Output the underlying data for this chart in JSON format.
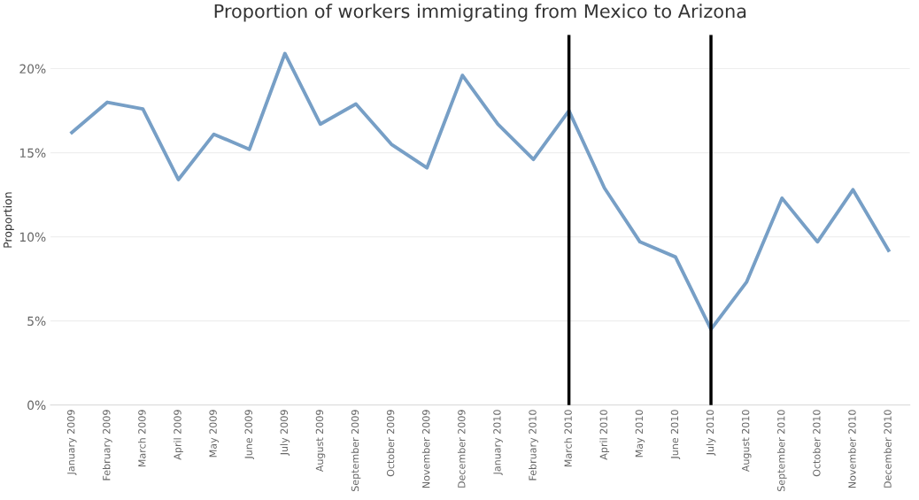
{
  "chart_data": {
    "type": "line",
    "title": "Proportion of workers immigrating from Mexico to Arizona",
    "ylabel": "Proportion",
    "categories": [
      "January 2009",
      "February 2009",
      "March 2009",
      "April 2009",
      "May 2009",
      "June 2009",
      "July 2009",
      "August 2009",
      "September 2009",
      "October 2009",
      "November 2009",
      "December 2009",
      "January 2010",
      "February 2010",
      "March 2010",
      "April 2010",
      "May 2010",
      "June 2010",
      "July 2010",
      "August 2010",
      "September 2010",
      "October 2010",
      "November 2010",
      "December 2010"
    ],
    "series": [
      {
        "color": "#779fc6",
        "values": [
          16.2,
          18.0,
          17.6,
          13.4,
          16.1,
          15.2,
          20.9,
          16.7,
          17.9,
          15.5,
          14.1,
          19.6,
          16.7,
          14.6,
          17.5,
          12.9,
          9.7,
          8.8,
          4.5,
          7.3,
          12.3,
          9.7,
          12.8,
          9.2
        ]
      }
    ],
    "ylim": [
      0,
      22
    ],
    "yticks": [
      {
        "value": 0,
        "label": "0%"
      },
      {
        "value": 5,
        "label": "5%"
      },
      {
        "value": 10,
        "label": "10%"
      },
      {
        "value": 15,
        "label": "15%"
      },
      {
        "value": 20,
        "label": "20%"
      }
    ],
    "grid": "y",
    "marker": "none",
    "line_style": "solid",
    "ref_lines": [
      {
        "axis": "x",
        "value": "March 2010",
        "color": "#000000",
        "line_style": "solid"
      },
      {
        "axis": "x",
        "value": "July 2010",
        "color": "#000000",
        "line_style": "solid"
      }
    ]
  }
}
